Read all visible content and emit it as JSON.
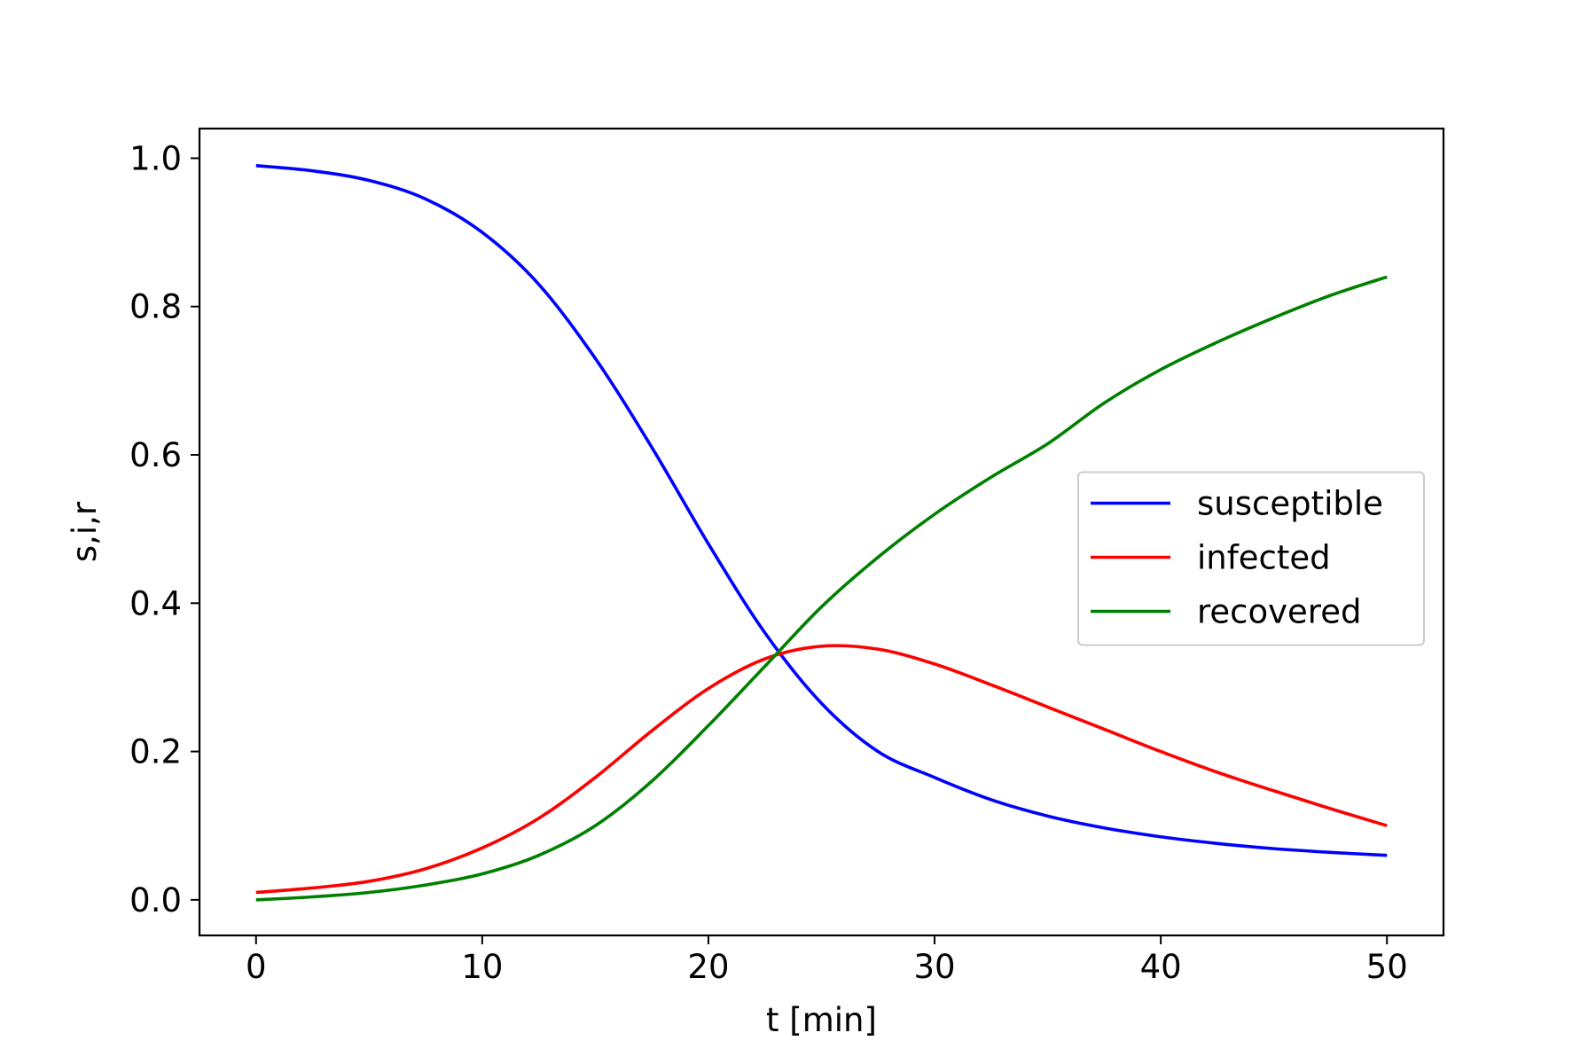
{
  "chart_data": {
    "type": "line",
    "title": "",
    "xlabel": "t [min]",
    "ylabel": "s,i,r",
    "xlim": [
      -2.5,
      52.5
    ],
    "ylim": [
      -0.048,
      1.04
    ],
    "xticks": [
      0,
      10,
      20,
      30,
      40,
      50
    ],
    "xtick_labels": [
      "0",
      "10",
      "20",
      "30",
      "40",
      "50"
    ],
    "yticks": [
      0.0,
      0.2,
      0.4,
      0.6,
      0.8,
      1.0
    ],
    "ytick_labels": [
      "0.0",
      "0.2",
      "0.4",
      "0.6",
      "0.8",
      "1.0"
    ],
    "grid": false,
    "legend_position": "center-right",
    "x": [
      0,
      2.5,
      5,
      7.5,
      10,
      12.5,
      15,
      17.5,
      20,
      22.5,
      25,
      27.5,
      30,
      32.5,
      35,
      37.5,
      40,
      42.5,
      45,
      47.5,
      50
    ],
    "series": [
      {
        "name": "susceptible",
        "color": "#0000ff",
        "values": [
          0.99,
          0.983,
          0.97,
          0.945,
          0.9,
          0.83,
          0.73,
          0.61,
          0.48,
          0.36,
          0.265,
          0.2,
          0.165,
          0.135,
          0.113,
          0.097,
          0.085,
          0.076,
          0.069,
          0.064,
          0.06
        ]
      },
      {
        "name": "infected",
        "color": "#ff0000",
        "values": [
          0.01,
          0.016,
          0.025,
          0.042,
          0.07,
          0.11,
          0.165,
          0.228,
          0.285,
          0.325,
          0.342,
          0.338,
          0.318,
          0.29,
          0.26,
          0.23,
          0.2,
          0.172,
          0.147,
          0.123,
          0.1
        ]
      },
      {
        "name": "recovered",
        "color": "#008000",
        "values": [
          0.0,
          0.004,
          0.01,
          0.02,
          0.035,
          0.06,
          0.1,
          0.16,
          0.235,
          0.315,
          0.395,
          0.462,
          0.52,
          0.57,
          0.615,
          0.67,
          0.715,
          0.752,
          0.785,
          0.815,
          0.84
        ]
      }
    ]
  }
}
